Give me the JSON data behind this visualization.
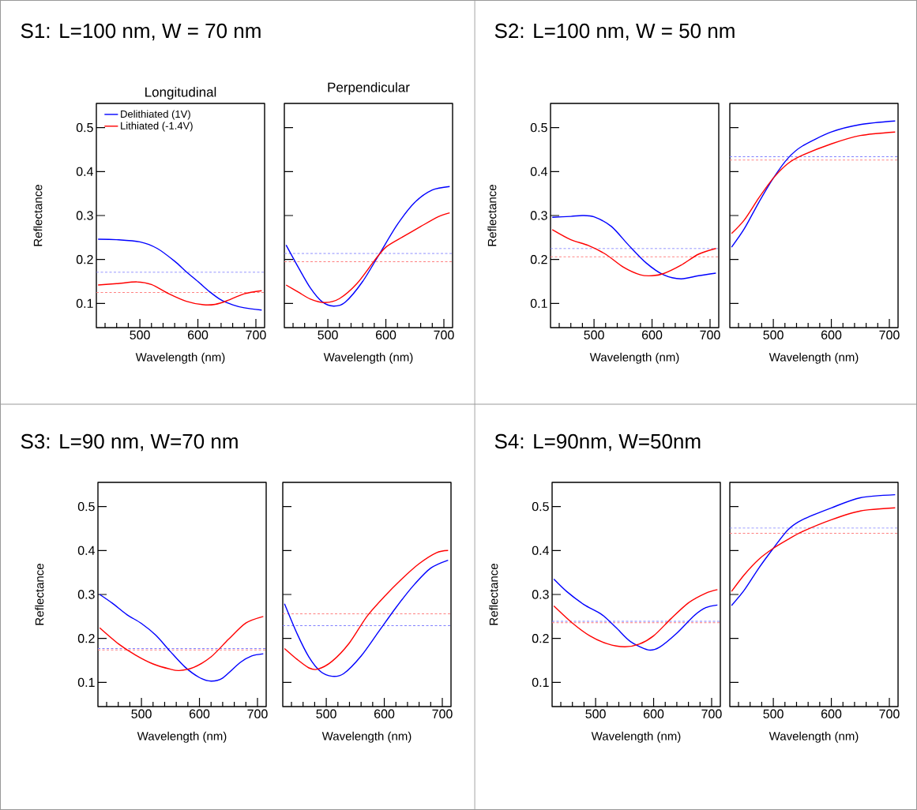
{
  "chart_data": [
    {
      "type": "line",
      "title": "S1: L=100 nm, W = 70 nm",
      "subtitle": "Longitudinal",
      "xlabel": "Wavelength (nm)",
      "ylabel": "Reflectance",
      "legend": "top left",
      "xlim": [
        425,
        715
      ],
      "ylim": [
        0.045,
        0.555
      ],
      "xticks": [
        {
          "value": 440,
          "label": null
        },
        {
          "value": 460,
          "label": null
        },
        {
          "value": 480,
          "label": null
        },
        500,
        {
          "value": 520,
          "label": null
        },
        {
          "value": 540,
          "label": null
        },
        {
          "value": 560,
          "label": null
        },
        {
          "value": 580,
          "label": null
        },
        600,
        {
          "value": 620,
          "label": null
        },
        {
          "value": 640,
          "label": null
        },
        {
          "value": 660,
          "label": null
        },
        {
          "value": 680,
          "label": null
        },
        700
      ],
      "yticks": [
        0.1,
        0.2,
        0.3,
        0.4,
        0.5
      ],
      "series": [
        {
          "name": "Delithiated (1V)",
          "color": "#0000ff",
          "x": [
            428,
            460,
            500,
            530,
            560,
            580,
            600,
            620,
            640,
            660,
            680,
            710
          ],
          "values": [
            0.246,
            0.245,
            0.24,
            0.225,
            0.196,
            0.172,
            0.15,
            0.127,
            0.108,
            0.097,
            0.09,
            0.085
          ]
        },
        {
          "name": "Lithiated (-1.4V)",
          "color": "#ff0000",
          "x": [
            428,
            460,
            495,
            520,
            550,
            580,
            610,
            630,
            650,
            680,
            710
          ],
          "values": [
            0.142,
            0.145,
            0.149,
            0.143,
            0.122,
            0.105,
            0.097,
            0.098,
            0.106,
            0.122,
            0.129
          ]
        }
      ],
      "ref_lines": [
        {
          "axis": "y",
          "value": 0.171,
          "color": "#8080ff",
          "line_style": "dashed"
        },
        {
          "axis": "y",
          "value": 0.125,
          "color": "#ff8080",
          "line_style": "dashed"
        }
      ]
    },
    {
      "type": "line",
      "title": "Perpendicular",
      "xlabel": "Wavelength (nm)",
      "tick_labels": "x",
      "xlim": [
        425,
        715
      ],
      "ylim": [
        0.045,
        0.555
      ],
      "xticks": [
        {
          "value": 440,
          "label": null
        },
        {
          "value": 460,
          "label": null
        },
        {
          "value": 480,
          "label": null
        },
        500,
        {
          "value": 520,
          "label": null
        },
        {
          "value": 540,
          "label": null
        },
        {
          "value": 560,
          "label": null
        },
        {
          "value": 580,
          "label": null
        },
        600,
        {
          "value": 620,
          "label": null
        },
        {
          "value": 640,
          "label": null
        },
        {
          "value": 660,
          "label": null
        },
        {
          "value": 680,
          "label": null
        },
        700
      ],
      "yticks": [
        0.1,
        0.2,
        0.3,
        0.4,
        0.5
      ],
      "series": [
        {
          "color": "#0000ff",
          "x": [
            428,
            450,
            470,
            490,
            510,
            530,
            560,
            590,
            620,
            650,
            680,
            710
          ],
          "values": [
            0.233,
            0.18,
            0.135,
            0.104,
            0.094,
            0.103,
            0.15,
            0.215,
            0.28,
            0.33,
            0.358,
            0.366
          ]
        },
        {
          "color": "#ff0000",
          "x": [
            428,
            450,
            470,
            495,
            520,
            550,
            580,
            600,
            630,
            660,
            690,
            710
          ],
          "values": [
            0.142,
            0.125,
            0.11,
            0.102,
            0.111,
            0.145,
            0.197,
            0.228,
            0.252,
            0.275,
            0.297,
            0.306
          ]
        }
      ],
      "ref_lines": [
        {
          "axis": "y",
          "value": 0.214,
          "color": "#8080ff",
          "line_style": "dashed"
        },
        {
          "axis": "y",
          "value": 0.195,
          "color": "#ff8080",
          "line_style": "dashed"
        }
      ]
    },
    {
      "type": "line",
      "title": "S2: L=100 nm, W = 50 nm",
      "xlabel": "Wavelength (nm)",
      "ylabel": "Reflectance",
      "xlim": [
        425,
        715
      ],
      "ylim": [
        0.045,
        0.555
      ],
      "xticks": [
        {
          "value": 440,
          "label": null
        },
        {
          "value": 460,
          "label": null
        },
        {
          "value": 480,
          "label": null
        },
        500,
        {
          "value": 520,
          "label": null
        },
        {
          "value": 540,
          "label": null
        },
        {
          "value": 560,
          "label": null
        },
        {
          "value": 580,
          "label": null
        },
        600,
        {
          "value": 620,
          "label": null
        },
        {
          "value": 640,
          "label": null
        },
        {
          "value": 660,
          "label": null
        },
        {
          "value": 680,
          "label": null
        },
        700
      ],
      "yticks": [
        0.1,
        0.2,
        0.3,
        0.4,
        0.5
      ],
      "series": [
        {
          "color": "#0000ff",
          "x": [
            428,
            460,
            480,
            500,
            530,
            560,
            590,
            620,
            650,
            680,
            710
          ],
          "values": [
            0.296,
            0.298,
            0.3,
            0.297,
            0.275,
            0.232,
            0.192,
            0.165,
            0.156,
            0.163,
            0.169
          ]
        },
        {
          "color": "#ff0000",
          "x": [
            428,
            460,
            490,
            520,
            550,
            580,
            600,
            620,
            650,
            680,
            710
          ],
          "values": [
            0.268,
            0.245,
            0.232,
            0.212,
            0.183,
            0.165,
            0.163,
            0.168,
            0.187,
            0.212,
            0.225
          ]
        }
      ],
      "ref_lines": [
        {
          "axis": "y",
          "value": 0.225,
          "color": "#8080ff",
          "line_style": "dashed"
        },
        {
          "axis": "y",
          "value": 0.206,
          "color": "#ff8080",
          "line_style": "dashed"
        }
      ]
    },
    {
      "type": "line",
      "xlabel": "Wavelength (nm)",
      "tick_labels": "x",
      "xlim": [
        425,
        715
      ],
      "ylim": [
        0.045,
        0.555
      ],
      "xticks": [
        {
          "value": 440,
          "label": null
        },
        {
          "value": 460,
          "label": null
        },
        {
          "value": 480,
          "label": null
        },
        500,
        {
          "value": 520,
          "label": null
        },
        {
          "value": 540,
          "label": null
        },
        {
          "value": 560,
          "label": null
        },
        {
          "value": 580,
          "label": null
        },
        600,
        {
          "value": 620,
          "label": null
        },
        {
          "value": 640,
          "label": null
        },
        {
          "value": 660,
          "label": null
        },
        {
          "value": 680,
          "label": null
        },
        700
      ],
      "yticks": [
        0.1,
        0.2,
        0.3,
        0.4,
        0.5
      ],
      "series": [
        {
          "color": "#0000ff",
          "x": [
            428,
            450,
            475,
            500,
            525,
            550,
            600,
            650,
            710
          ],
          "values": [
            0.228,
            0.27,
            0.33,
            0.385,
            0.43,
            0.458,
            0.49,
            0.507,
            0.515
          ]
        },
        {
          "color": "#ff0000",
          "x": [
            428,
            450,
            475,
            500,
            525,
            550,
            600,
            650,
            710
          ],
          "values": [
            0.259,
            0.29,
            0.34,
            0.385,
            0.418,
            0.437,
            0.463,
            0.482,
            0.49
          ]
        }
      ],
      "ref_lines": [
        {
          "axis": "y",
          "value": 0.434,
          "color": "#8080ff",
          "line_style": "dashed"
        },
        {
          "axis": "y",
          "value": 0.426,
          "color": "#ff8080",
          "line_style": "dashed"
        }
      ]
    },
    {
      "type": "line",
      "title": "S3: L=90 nm, W=70 nm",
      "xlabel": "Wavelength (nm)",
      "ylabel": "Reflectance",
      "xlim": [
        425,
        715
      ],
      "ylim": [
        0.045,
        0.555
      ],
      "xticks": [
        {
          "value": 440,
          "label": null
        },
        {
          "value": 460,
          "label": null
        },
        {
          "value": 480,
          "label": null
        },
        500,
        {
          "value": 520,
          "label": null
        },
        {
          "value": 540,
          "label": null
        },
        {
          "value": 560,
          "label": null
        },
        {
          "value": 580,
          "label": null
        },
        600,
        {
          "value": 620,
          "label": null
        },
        {
          "value": 640,
          "label": null
        },
        {
          "value": 660,
          "label": null
        },
        {
          "value": 680,
          "label": null
        },
        700
      ],
      "yticks": [
        0.1,
        0.2,
        0.3,
        0.4,
        0.5
      ],
      "series": [
        {
          "color": "#0000ff",
          "x": [
            428,
            450,
            475,
            500,
            525,
            550,
            575,
            600,
            620,
            640,
            670,
            690,
            710
          ],
          "values": [
            0.3,
            0.28,
            0.254,
            0.234,
            0.207,
            0.17,
            0.135,
            0.111,
            0.103,
            0.11,
            0.145,
            0.16,
            0.165
          ]
        },
        {
          "color": "#ff0000",
          "x": [
            428,
            460,
            490,
            520,
            550,
            565,
            590,
            620,
            650,
            680,
            710
          ],
          "values": [
            0.224,
            0.188,
            0.162,
            0.142,
            0.13,
            0.127,
            0.134,
            0.158,
            0.198,
            0.235,
            0.25
          ]
        }
      ],
      "ref_lines": [
        {
          "axis": "y",
          "value": 0.177,
          "color": "#8080ff",
          "line_style": "dashed"
        },
        {
          "axis": "y",
          "value": 0.174,
          "color": "#ff8080",
          "line_style": "dashed"
        }
      ]
    },
    {
      "type": "line",
      "xlabel": "Wavelength (nm)",
      "tick_labels": "x",
      "xlim": [
        425,
        715
      ],
      "ylim": [
        0.045,
        0.555
      ],
      "xticks": [
        {
          "value": 440,
          "label": null
        },
        {
          "value": 460,
          "label": null
        },
        {
          "value": 480,
          "label": null
        },
        500,
        {
          "value": 520,
          "label": null
        },
        {
          "value": 540,
          "label": null
        },
        {
          "value": 560,
          "label": null
        },
        {
          "value": 580,
          "label": null
        },
        600,
        {
          "value": 620,
          "label": null
        },
        {
          "value": 640,
          "label": null
        },
        {
          "value": 660,
          "label": null
        },
        {
          "value": 680,
          "label": null
        },
        700
      ],
      "yticks": [
        0.1,
        0.2,
        0.3,
        0.4,
        0.5
      ],
      "series": [
        {
          "color": "#0000ff",
          "x": [
            428,
            450,
            470,
            490,
            510,
            530,
            560,
            590,
            620,
            650,
            680,
            710
          ],
          "values": [
            0.279,
            0.21,
            0.158,
            0.125,
            0.114,
            0.12,
            0.16,
            0.215,
            0.27,
            0.32,
            0.36,
            0.378
          ]
        },
        {
          "color": "#ff0000",
          "x": [
            428,
            450,
            470,
            485,
            510,
            540,
            570,
            600,
            630,
            660,
            690,
            710
          ],
          "values": [
            0.177,
            0.152,
            0.133,
            0.13,
            0.148,
            0.19,
            0.25,
            0.295,
            0.335,
            0.37,
            0.395,
            0.4
          ]
        }
      ],
      "ref_lines": [
        {
          "axis": "y",
          "value": 0.229,
          "color": "#8080ff",
          "line_style": "dashed"
        },
        {
          "axis": "y",
          "value": 0.256,
          "color": "#ff8080",
          "line_style": "dashed"
        }
      ]
    },
    {
      "type": "line",
      "title": "S4: L=90nm, W=50nm",
      "xlabel": "Wavelength (nm)",
      "ylabel": "Reflectance",
      "xlim": [
        425,
        715
      ],
      "ylim": [
        0.045,
        0.555
      ],
      "xticks": [
        {
          "value": 440,
          "label": null
        },
        {
          "value": 460,
          "label": null
        },
        {
          "value": 480,
          "label": null
        },
        500,
        {
          "value": 520,
          "label": null
        },
        {
          "value": 540,
          "label": null
        },
        {
          "value": 560,
          "label": null
        },
        {
          "value": 580,
          "label": null
        },
        600,
        {
          "value": 620,
          "label": null
        },
        {
          "value": 640,
          "label": null
        },
        {
          "value": 660,
          "label": null
        },
        {
          "value": 680,
          "label": null
        },
        700
      ],
      "yticks": [
        0.1,
        0.2,
        0.3,
        0.4,
        0.5
      ],
      "series": [
        {
          "color": "#0000ff",
          "x": [
            428,
            450,
            480,
            510,
            535,
            560,
            590,
            610,
            640,
            670,
            690,
            710
          ],
          "values": [
            0.335,
            0.307,
            0.277,
            0.255,
            0.225,
            0.193,
            0.174,
            0.18,
            0.212,
            0.252,
            0.27,
            0.276
          ]
        },
        {
          "color": "#ff0000",
          "x": [
            428,
            460,
            490,
            520,
            550,
            575,
            600,
            630,
            660,
            690,
            710
          ],
          "values": [
            0.274,
            0.235,
            0.206,
            0.188,
            0.181,
            0.187,
            0.206,
            0.245,
            0.281,
            0.303,
            0.311
          ]
        }
      ],
      "ref_lines": [
        {
          "axis": "y",
          "value": 0.239,
          "color": "#8080ff",
          "line_style": "dashed"
        },
        {
          "axis": "y",
          "value": 0.236,
          "color": "#ff8080",
          "line_style": "dashed"
        }
      ]
    },
    {
      "type": "line",
      "xlabel": "Wavelength (nm)",
      "tick_labels": "x",
      "xlim": [
        425,
        715
      ],
      "ylim": [
        0.045,
        0.555
      ],
      "xticks": [
        {
          "value": 440,
          "label": null
        },
        {
          "value": 460,
          "label": null
        },
        {
          "value": 480,
          "label": null
        },
        500,
        {
          "value": 520,
          "label": null
        },
        {
          "value": 540,
          "label": null
        },
        {
          "value": 560,
          "label": null
        },
        {
          "value": 580,
          "label": null
        },
        600,
        {
          "value": 620,
          "label": null
        },
        {
          "value": 640,
          "label": null
        },
        {
          "value": 660,
          "label": null
        },
        {
          "value": 680,
          "label": null
        },
        700
      ],
      "yticks": [
        0.1,
        0.2,
        0.3,
        0.4,
        0.5
      ],
      "series": [
        {
          "color": "#0000ff",
          "x": [
            428,
            450,
            475,
            500,
            525,
            550,
            600,
            650,
            710
          ],
          "values": [
            0.275,
            0.31,
            0.36,
            0.405,
            0.447,
            0.47,
            0.497,
            0.52,
            0.527
          ]
        },
        {
          "color": "#ff0000",
          "x": [
            428,
            450,
            475,
            500,
            525,
            550,
            600,
            650,
            710
          ],
          "values": [
            0.307,
            0.345,
            0.38,
            0.405,
            0.425,
            0.443,
            0.47,
            0.49,
            0.497
          ]
        }
      ],
      "ref_lines": [
        {
          "axis": "y",
          "value": 0.451,
          "color": "#8080ff",
          "line_style": "dashed"
        },
        {
          "axis": "y",
          "value": 0.439,
          "color": "#ff8080",
          "line_style": "dashed"
        }
      ]
    }
  ]
}
